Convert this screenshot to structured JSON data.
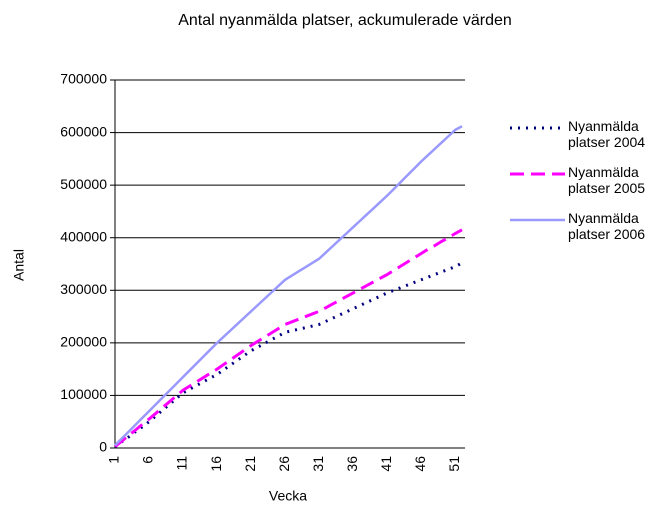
{
  "chart_data": {
    "type": "line",
    "title": "Antal nyanmälda platser, ackumulerade värden",
    "x_label": "Vecka",
    "y_label": "Antal",
    "categories": [
      "1",
      null,
      null,
      null,
      null,
      "6",
      null,
      null,
      null,
      null,
      "11",
      null,
      null,
      null,
      null,
      "16",
      null,
      null,
      null,
      null,
      "21",
      null,
      null,
      null,
      null,
      "26",
      null,
      null,
      null,
      null,
      "31",
      null,
      null,
      null,
      null,
      "36",
      null,
      null,
      null,
      null,
      "41",
      null,
      null,
      null,
      null,
      "46",
      null,
      null,
      null,
      null,
      "51",
      null
    ],
    "series": [
      {
        "name": "Nyanmälda platser 2004",
        "color": "#000080",
        "values": [
          2000,
          12000,
          21000,
          31000,
          40000,
          50000,
          61000,
          72000,
          83000,
          94000,
          105000,
          112000,
          119000,
          126000,
          133000,
          140000,
          149000,
          158000,
          167000,
          176000,
          185000,
          192000,
          199000,
          206000,
          213000,
          220000,
          223000,
          226000,
          229000,
          232000,
          235000,
          241000,
          247000,
          253000,
          259000,
          265000,
          271000,
          277000,
          283000,
          289000,
          295000,
          300000,
          305000,
          310000,
          315000,
          320000,
          325000,
          330000,
          335000,
          340000,
          345000,
          352000
        ]
      },
      {
        "name": "Nyanmälda platser 2005",
        "color": "#ff00ff",
        "values": [
          3000,
          13000,
          24000,
          34000,
          45000,
          55000,
          66000,
          77000,
          88000,
          99000,
          110000,
          118000,
          126000,
          134000,
          142000,
          150000,
          159000,
          168000,
          177000,
          186000,
          195000,
          203000,
          211000,
          219000,
          227000,
          235000,
          240000,
          245000,
          250000,
          255000,
          260000,
          267000,
          274000,
          281000,
          288000,
          295000,
          302000,
          309000,
          316000,
          323000,
          330000,
          338000,
          346000,
          354000,
          362000,
          370000,
          378000,
          385000,
          393000,
          400000,
          408000,
          415000
        ]
      },
      {
        "name": "Nyanmälda platser 2006",
        "color": "#9999ff",
        "values": [
          5000,
          18000,
          31000,
          44000,
          57000,
          70000,
          83000,
          96000,
          109000,
          122000,
          135000,
          148000,
          161000,
          174000,
          187000,
          200000,
          212000,
          224000,
          236000,
          248000,
          260000,
          272000,
          284000,
          296000,
          308000,
          320000,
          328000,
          336000,
          344000,
          352000,
          360000,
          372000,
          384000,
          396000,
          408000,
          420000,
          432000,
          444000,
          456000,
          468000,
          480000,
          493000,
          506000,
          519000,
          532000,
          545000,
          557000,
          569000,
          581000,
          593000,
          605000,
          612000
        ]
      }
    ],
    "ylim": [
      0,
      700000
    ],
    "yticks": [
      0,
      100000,
      200000,
      300000,
      400000,
      500000,
      600000,
      700000
    ],
    "grid": true,
    "legend": "right"
  }
}
